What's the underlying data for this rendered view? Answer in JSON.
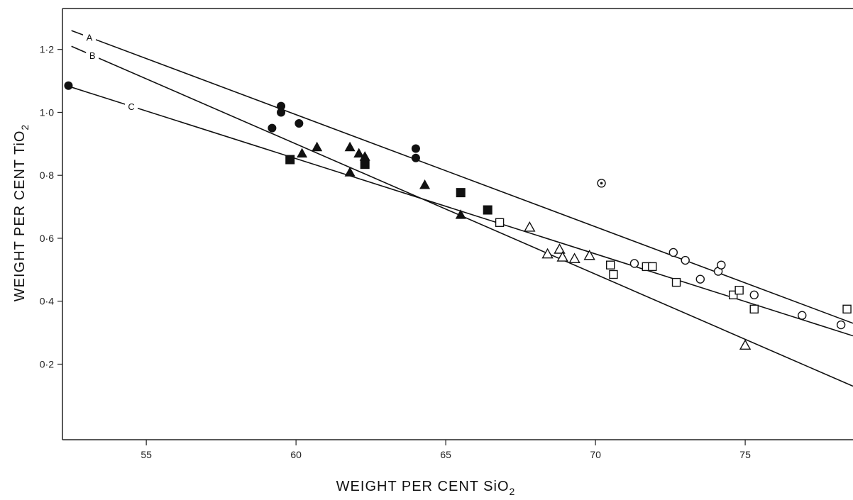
{
  "chart_data": {
    "type": "scatter",
    "title": "",
    "xlabel_main": "WEIGHT PER CENT SiO",
    "xlabel_sub": "2",
    "ylabel_main": "WEIGHT PER CENT TiO",
    "ylabel_sub": "2",
    "xlim": [
      52.2,
      78.6
    ],
    "ylim": [
      -0.04,
      1.33
    ],
    "x_ticks": [
      55,
      60,
      65,
      70,
      75
    ],
    "y_ticks": [
      0.2,
      0.4,
      0.6,
      0.8,
      1.0,
      1.2
    ],
    "y_tick_labels": [
      "0·2",
      "0·4",
      "0·6",
      "0·8",
      "1·0",
      "1·2"
    ],
    "grid": false,
    "lines": [
      {
        "name": "A",
        "style": "solid",
        "x": [
          52.5,
          78.6
        ],
        "y": [
          1.26,
          0.33
        ],
        "label_x": 53.1
      },
      {
        "name": "B",
        "style": "solid",
        "x": [
          52.5,
          78.6
        ],
        "y": [
          1.21,
          0.13
        ],
        "label_x": 53.2
      },
      {
        "name": "C",
        "style": "solid",
        "x": [
          52.5,
          78.6
        ],
        "y": [
          1.08,
          0.29
        ],
        "label_x": 54.5
      }
    ],
    "series": [
      {
        "marker": "filled-circle",
        "points": [
          [
            52.4,
            1.085
          ],
          [
            59.2,
            0.95
          ],
          [
            59.5,
            1.02
          ],
          [
            59.5,
            1.0
          ],
          [
            60.1,
            0.965
          ],
          [
            64.0,
            0.885
          ],
          [
            64.0,
            0.855
          ]
        ]
      },
      {
        "marker": "filled-triangle",
        "points": [
          [
            60.2,
            0.87
          ],
          [
            60.7,
            0.89
          ],
          [
            61.8,
            0.89
          ],
          [
            62.1,
            0.87
          ],
          [
            62.3,
            0.86
          ],
          [
            61.8,
            0.81
          ],
          [
            64.3,
            0.77
          ],
          [
            65.5,
            0.675
          ]
        ]
      },
      {
        "marker": "filled-square",
        "points": [
          [
            59.8,
            0.85
          ],
          [
            62.3,
            0.835
          ],
          [
            65.5,
            0.745
          ],
          [
            66.4,
            0.69
          ]
        ]
      },
      {
        "marker": "open-circle",
        "points": [
          [
            71.3,
            0.52
          ],
          [
            72.6,
            0.555
          ],
          [
            73.0,
            0.53
          ],
          [
            73.5,
            0.47
          ],
          [
            74.1,
            0.495
          ],
          [
            74.2,
            0.515
          ],
          [
            75.3,
            0.42
          ],
          [
            76.9,
            0.355
          ],
          [
            78.2,
            0.325
          ]
        ]
      },
      {
        "marker": "open-square",
        "points": [
          [
            66.8,
            0.65
          ],
          [
            70.5,
            0.515
          ],
          [
            70.6,
            0.485
          ],
          [
            71.7,
            0.51
          ],
          [
            71.9,
            0.51
          ],
          [
            72.7,
            0.46
          ],
          [
            74.6,
            0.42
          ],
          [
            74.8,
            0.435
          ],
          [
            75.3,
            0.375
          ],
          [
            78.4,
            0.375
          ]
        ]
      },
      {
        "marker": "open-triangle",
        "points": [
          [
            67.8,
            0.635
          ],
          [
            68.4,
            0.55
          ],
          [
            68.8,
            0.565
          ],
          [
            68.9,
            0.54
          ],
          [
            69.3,
            0.535
          ],
          [
            69.8,
            0.545
          ],
          [
            75.0,
            0.26
          ]
        ]
      },
      {
        "marker": "dotted-circle",
        "points": [
          [
            70.2,
            0.775
          ]
        ]
      }
    ]
  }
}
